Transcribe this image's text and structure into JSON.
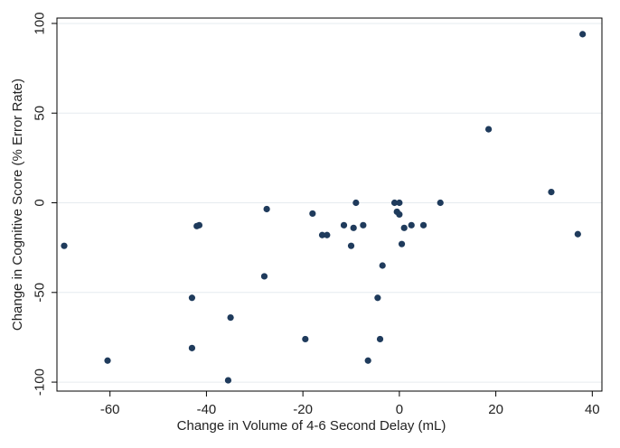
{
  "chart_data": {
    "type": "scatter",
    "title": "",
    "xlabel": "Change in Volume of 4-6 Second Delay (mL)",
    "ylabel": "Change in Cognitive Score (% Error Rate)",
    "xlim": [
      -71,
      42
    ],
    "ylim": [
      -105,
      103
    ],
    "xticks": [
      -60,
      -40,
      -20,
      0,
      20,
      40
    ],
    "yticks": [
      100,
      50,
      0,
      -50,
      -100
    ],
    "xtick_labels": [
      "-60",
      "-40",
      "-20",
      "0",
      "20",
      "40"
    ],
    "ytick_labels": [
      "100",
      "50",
      "0",
      "-50",
      "-100"
    ],
    "grid": "horizontal",
    "legend": "none",
    "colors": {
      "point": "#1f3b5c",
      "axis": "#000000",
      "grid": "#e6ebef",
      "background": "#ffffff"
    },
    "series": [
      {
        "points": [
          [
            -69.5,
            -24
          ],
          [
            -60.5,
            -88
          ],
          [
            -43,
            -53
          ],
          [
            -43,
            -81
          ],
          [
            -42,
            -13
          ],
          [
            -41.5,
            -12.5
          ],
          [
            -35.5,
            -99
          ],
          [
            -35,
            -64
          ],
          [
            -28,
            -41
          ],
          [
            -27.5,
            -3.5
          ],
          [
            -19.5,
            -76
          ],
          [
            -18,
            -6
          ],
          [
            -16,
            -18
          ],
          [
            -15,
            -18
          ],
          [
            -11.5,
            -12.5
          ],
          [
            -10,
            -24
          ],
          [
            -9.5,
            -14
          ],
          [
            -9,
            0
          ],
          [
            -7.5,
            -12.5
          ],
          [
            -6.5,
            -88
          ],
          [
            -4.5,
            -53
          ],
          [
            -4,
            -76
          ],
          [
            -3.5,
            -35
          ],
          [
            -1,
            0
          ],
          [
            -0.5,
            -5
          ],
          [
            0,
            -6.5
          ],
          [
            0,
            0
          ],
          [
            0.5,
            -23
          ],
          [
            1,
            -14
          ],
          [
            2.5,
            -12.5
          ],
          [
            5,
            -12.5
          ],
          [
            8.5,
            0
          ],
          [
            18.5,
            41
          ],
          [
            31.5,
            6
          ],
          [
            37,
            -17.5
          ],
          [
            38,
            94
          ]
        ]
      }
    ]
  }
}
